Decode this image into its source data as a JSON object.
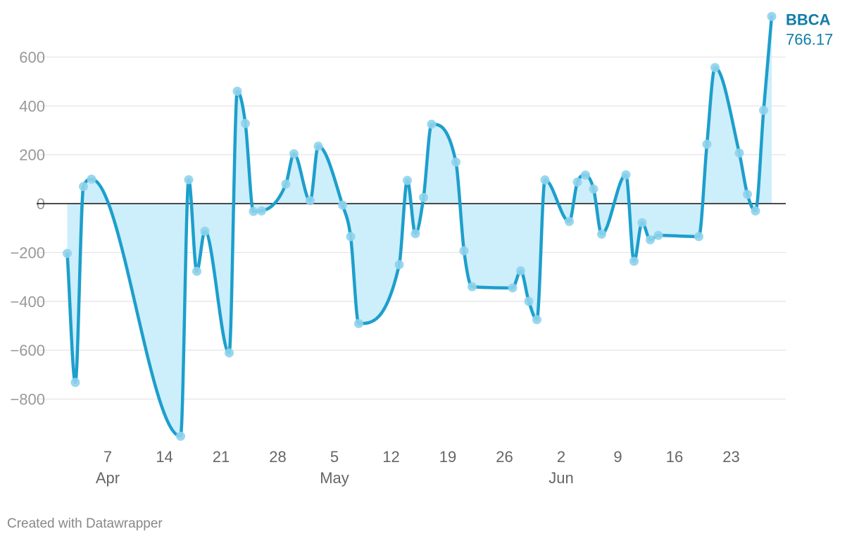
{
  "chart_data": {
    "type": "area",
    "series": [
      {
        "name": "BBCA",
        "final_label": "766.17",
        "points": [
          [
            "2024-04-02",
            -204
          ],
          [
            "2024-04-03",
            -732
          ],
          [
            "2024-04-04",
            70
          ],
          [
            "2024-04-05",
            100
          ],
          [
            "2024-04-16",
            -952
          ],
          [
            "2024-04-17",
            98
          ],
          [
            "2024-04-18",
            -277
          ],
          [
            "2024-04-19",
            -113
          ],
          [
            "2024-04-22",
            -611
          ],
          [
            "2024-04-23",
            460
          ],
          [
            "2024-04-24",
            328
          ],
          [
            "2024-04-25",
            -32
          ],
          [
            "2024-04-26",
            -30
          ],
          [
            "2024-04-29",
            80
          ],
          [
            "2024-04-30",
            204
          ],
          [
            "2024-05-02",
            12
          ],
          [
            "2024-05-03",
            235
          ],
          [
            "2024-05-06",
            -6
          ],
          [
            "2024-05-07",
            -135
          ],
          [
            "2024-05-08",
            -491
          ],
          [
            "2024-05-13",
            -250
          ],
          [
            "2024-05-14",
            95
          ],
          [
            "2024-05-15",
            -123
          ],
          [
            "2024-05-16",
            25
          ],
          [
            "2024-05-17",
            325
          ],
          [
            "2024-05-20",
            170
          ],
          [
            "2024-05-21",
            -193
          ],
          [
            "2024-05-22",
            -340
          ],
          [
            "2024-05-27",
            -345
          ],
          [
            "2024-05-28",
            -275
          ],
          [
            "2024-05-29",
            -400
          ],
          [
            "2024-05-30",
            -475
          ],
          [
            "2024-05-31",
            97
          ],
          [
            "2024-06-03",
            -73
          ],
          [
            "2024-06-04",
            88
          ],
          [
            "2024-06-05",
            117
          ],
          [
            "2024-06-06",
            60
          ],
          [
            "2024-06-07",
            -125
          ],
          [
            "2024-06-10",
            118
          ],
          [
            "2024-06-11",
            -236
          ],
          [
            "2024-06-12",
            -78
          ],
          [
            "2024-06-13",
            -148
          ],
          [
            "2024-06-14",
            -130
          ],
          [
            "2024-06-19",
            -135
          ],
          [
            "2024-06-20",
            243
          ],
          [
            "2024-06-21",
            557
          ],
          [
            "2024-06-24",
            207
          ],
          [
            "2024-06-25",
            38
          ],
          [
            "2024-06-26",
            -30
          ],
          [
            "2024-06-27",
            382
          ],
          [
            "2024-06-28",
            766.17
          ]
        ]
      }
    ],
    "y_ticks": [
      600,
      400,
      200,
      0,
      -200,
      -400,
      -600,
      -800
    ],
    "y_tick_labels": [
      "600",
      "400",
      "200",
      "0",
      "−200",
      "−400",
      "−600",
      "−800"
    ],
    "x_ticks": [
      {
        "date": "2024-04-07",
        "label": "7",
        "month": "Apr"
      },
      {
        "date": "2024-04-14",
        "label": "14",
        "month": ""
      },
      {
        "date": "2024-04-21",
        "label": "21",
        "month": ""
      },
      {
        "date": "2024-04-28",
        "label": "28",
        "month": ""
      },
      {
        "date": "2024-05-05",
        "label": "5",
        "month": "May"
      },
      {
        "date": "2024-05-12",
        "label": "12",
        "month": ""
      },
      {
        "date": "2024-05-19",
        "label": "19",
        "month": ""
      },
      {
        "date": "2024-05-26",
        "label": "26",
        "month": ""
      },
      {
        "date": "2024-06-02",
        "label": "2",
        "month": "Jun"
      },
      {
        "date": "2024-06-09",
        "label": "9",
        "month": ""
      },
      {
        "date": "2024-06-16",
        "label": "16",
        "month": ""
      },
      {
        "date": "2024-06-23",
        "label": "23",
        "month": ""
      }
    ],
    "xlim": [
      "2024-04-02",
      "2024-06-28"
    ],
    "ylim": [
      -960,
      770
    ],
    "grid": true,
    "colors": {
      "line": "#1d9fcc",
      "marker": "#8fd3ec",
      "fill": "#cdeefb",
      "grid": "#e3e3e3",
      "zero_line": "#222222",
      "label": "#0f7ea8"
    }
  },
  "credit": "Created with Datawrapper"
}
